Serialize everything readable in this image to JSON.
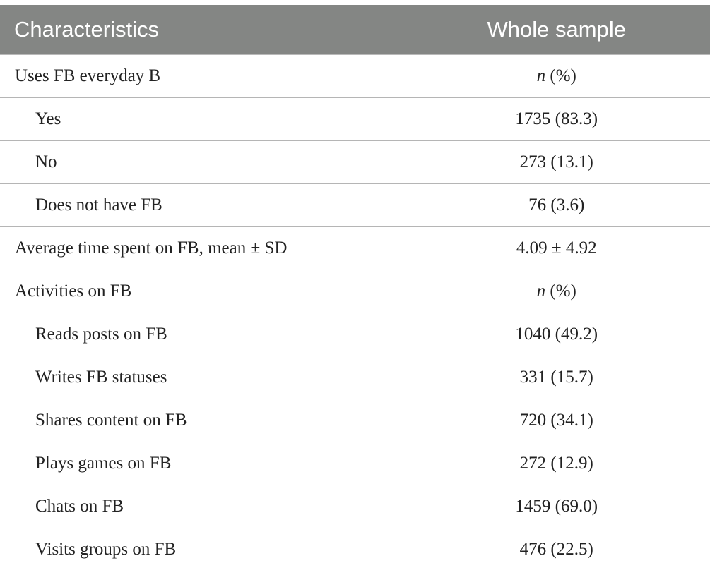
{
  "table": {
    "headers": [
      "Characteristics",
      "Whole sample"
    ],
    "rows": [
      {
        "label": "Uses FB everyday B",
        "value_italic": "n",
        "value": " (%)"
      },
      {
        "label": "Yes",
        "value": "1735 (83.3)"
      },
      {
        "label": "No",
        "value": "273 (13.1)"
      },
      {
        "label": "Does not have FB",
        "value": "76 (3.6)"
      },
      {
        "label": "Average time spent on FB, mean ± SD",
        "value": "4.09 ± 4.92"
      },
      {
        "label": "Activities on FB",
        "value_italic": "n",
        "value": " (%)"
      },
      {
        "label": "Reads posts on FB",
        "value": "1040 (49.2)"
      },
      {
        "label": "Writes FB statuses",
        "value": "331 (15.7)"
      },
      {
        "label": "Shares content on FB",
        "value": "720 (34.1)"
      },
      {
        "label": "Plays games on FB",
        "value": "272 (12.9)"
      },
      {
        "label": "Chats on FB",
        "value": "1459 (69.0)"
      },
      {
        "label": "Visits groups on FB",
        "value": "476 (22.5)"
      }
    ]
  }
}
